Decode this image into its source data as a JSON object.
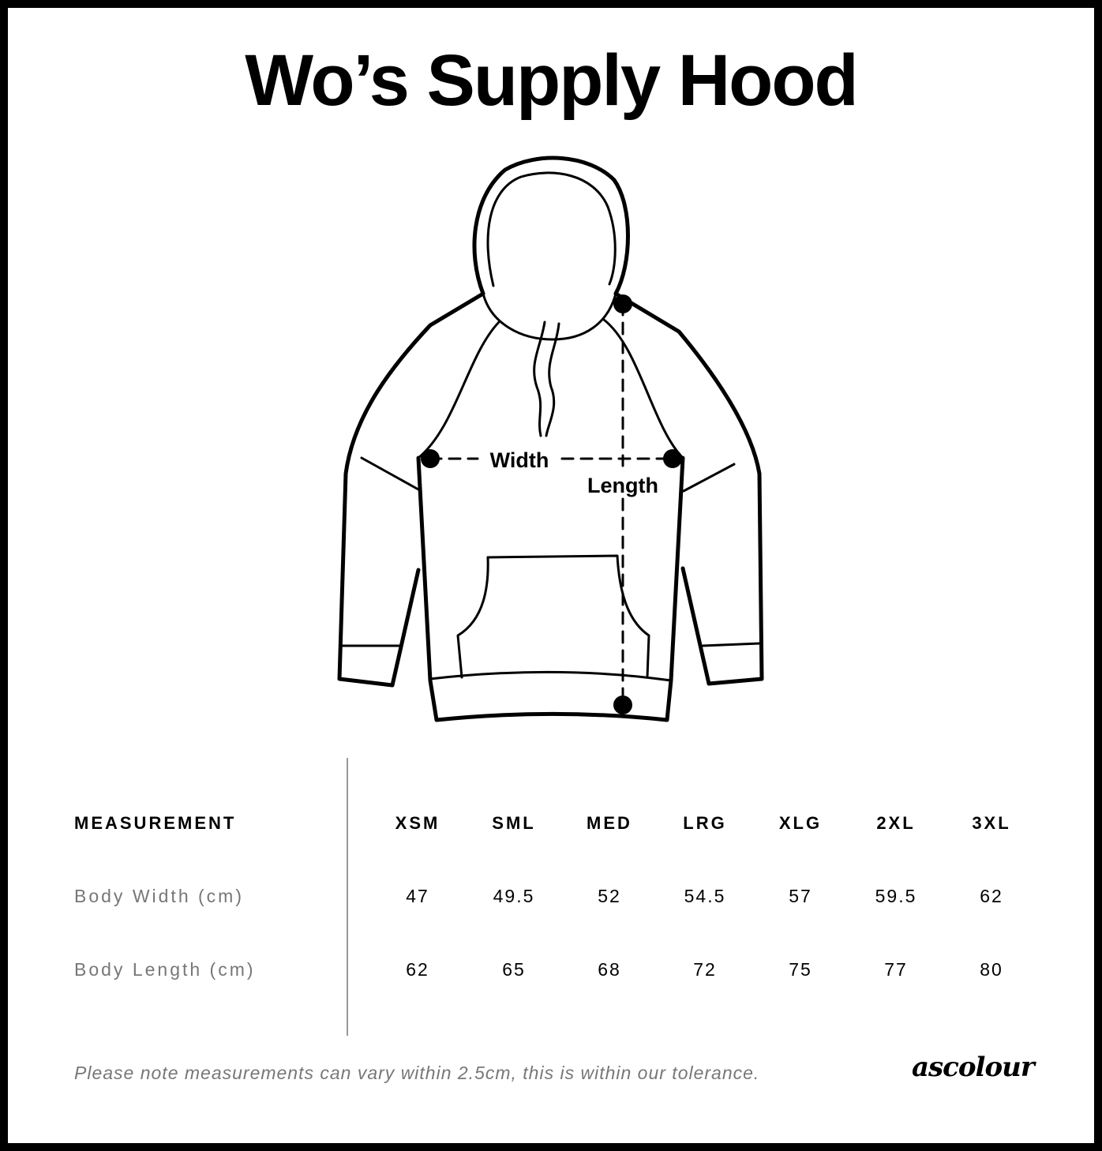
{
  "title": "Wo’s Supply Hood",
  "diagram": {
    "width_label": "Width",
    "length_label": "Length"
  },
  "table": {
    "header": {
      "label": "MEASUREMENT",
      "sizes": [
        "XSM",
        "SML",
        "MED",
        "LRG",
        "XLG",
        "2XL",
        "3XL"
      ]
    },
    "rows": [
      {
        "label": "Body Width (cm)",
        "values": [
          "47",
          "49.5",
          "52",
          "54.5",
          "57",
          "59.5",
          "62"
        ]
      },
      {
        "label": "Body Length (cm)",
        "values": [
          "62",
          "65",
          "68",
          "72",
          "75",
          "77",
          "80"
        ]
      }
    ]
  },
  "note": "Please note measurements can vary within 2.5cm, this is within our tolerance.",
  "brand": "ascolour"
}
